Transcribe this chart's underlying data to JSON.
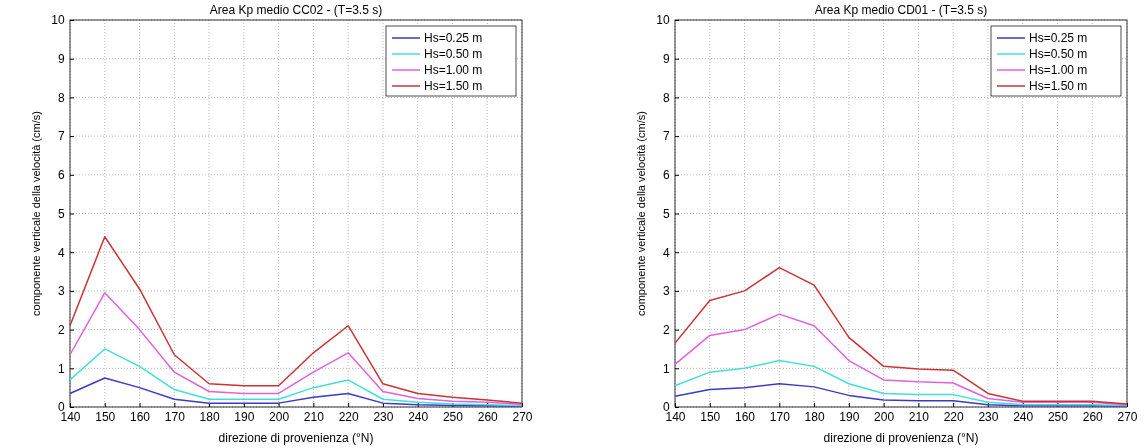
{
  "chart_data": [
    {
      "type": "line",
      "title": "Area Kp medio CC02 - (T=3.5 s)",
      "xlabel": "direzione di provenienza (°N)",
      "ylabel": "componente verticale della velocità (cm/s)",
      "x": [
        140,
        150,
        160,
        170,
        180,
        190,
        200,
        210,
        220,
        230,
        240,
        250,
        260,
        270
      ],
      "xlim": [
        140,
        270
      ],
      "xticks": [
        140,
        150,
        160,
        170,
        180,
        190,
        200,
        210,
        220,
        230,
        240,
        250,
        260,
        270
      ],
      "ylim": [
        0,
        10
      ],
      "yticks": [
        0,
        1,
        2,
        3,
        4,
        5,
        6,
        7,
        8,
        9,
        10
      ],
      "grid": true,
      "legend": "top right",
      "line_style": "solid",
      "marker": "none",
      "series": [
        {
          "name": "Hs=0.25 m",
          "color": "#3a3ac8",
          "values": [
            0.35,
            0.75,
            0.5,
            0.2,
            0.1,
            0.1,
            0.1,
            0.25,
            0.35,
            0.1,
            0.06,
            0.04,
            0.03,
            0.02
          ]
        },
        {
          "name": "Hs=0.50 m",
          "color": "#40e0d8",
          "values": [
            0.7,
            1.5,
            1.05,
            0.45,
            0.2,
            0.2,
            0.2,
            0.5,
            0.7,
            0.2,
            0.12,
            0.08,
            0.06,
            0.04
          ]
        },
        {
          "name": "Hs=1.00 m",
          "color": "#e060e0",
          "values": [
            1.35,
            2.95,
            2.0,
            0.9,
            0.4,
            0.35,
            0.35,
            0.9,
            1.4,
            0.4,
            0.22,
            0.15,
            0.12,
            0.07
          ]
        },
        {
          "name": "Hs=1.50 m",
          "color": "#cc3333",
          "values": [
            2.1,
            4.4,
            3.05,
            1.35,
            0.6,
            0.55,
            0.55,
            1.4,
            2.1,
            0.6,
            0.35,
            0.25,
            0.18,
            0.1
          ]
        }
      ]
    },
    {
      "type": "line",
      "title": "Area Kp medio CD01 - (T=3.5 s)",
      "xlabel": "direzione di provenienza (°N)",
      "ylabel": "componente verticale della velocità (cm/s)",
      "x": [
        140,
        150,
        160,
        170,
        180,
        190,
        200,
        210,
        220,
        230,
        240,
        250,
        260,
        270
      ],
      "xlim": [
        140,
        270
      ],
      "xticks": [
        140,
        150,
        160,
        170,
        180,
        190,
        200,
        210,
        220,
        230,
        240,
        250,
        260,
        270
      ],
      "ylim": [
        0,
        10
      ],
      "yticks": [
        0,
        1,
        2,
        3,
        4,
        5,
        6,
        7,
        8,
        9,
        10
      ],
      "grid": true,
      "legend": "top right",
      "line_style": "solid",
      "marker": "none",
      "series": [
        {
          "name": "Hs=0.25 m",
          "color": "#3a3ac8",
          "values": [
            0.28,
            0.45,
            0.5,
            0.6,
            0.52,
            0.3,
            0.18,
            0.16,
            0.16,
            0.06,
            0.03,
            0.03,
            0.03,
            0.02
          ]
        },
        {
          "name": "Hs=0.50 m",
          "color": "#40e0d8",
          "values": [
            0.55,
            0.9,
            1.0,
            1.2,
            1.05,
            0.6,
            0.35,
            0.32,
            0.32,
            0.12,
            0.06,
            0.06,
            0.06,
            0.04
          ]
        },
        {
          "name": "Hs=1.00 m",
          "color": "#e060e0",
          "values": [
            1.1,
            1.85,
            2.0,
            2.4,
            2.1,
            1.2,
            0.7,
            0.65,
            0.62,
            0.22,
            0.12,
            0.12,
            0.12,
            0.06
          ]
        },
        {
          "name": "Hs=1.50 m",
          "color": "#cc3333",
          "values": [
            1.65,
            2.75,
            3.0,
            3.6,
            3.15,
            1.8,
            1.05,
            0.98,
            0.95,
            0.35,
            0.15,
            0.15,
            0.15,
            0.08
          ]
        }
      ]
    }
  ]
}
